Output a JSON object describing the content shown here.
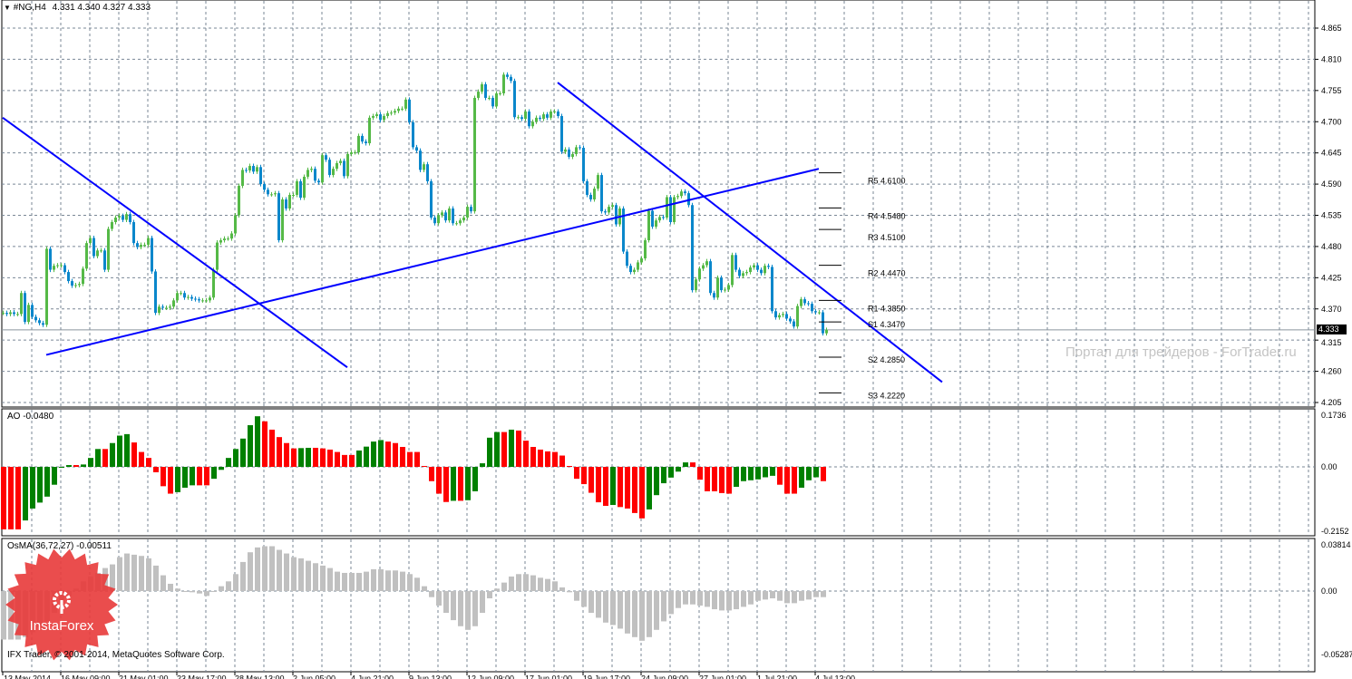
{
  "header": {
    "symbol": "#NG,H4",
    "ohlc": "4.331 4.340 4.327 4.333",
    "menu_icon": "triangle-down-icon"
  },
  "watermark": "Портал для трейдеров - ForTrader.ru",
  "copyright": "IFX Trader, © 2001-2014, MetaQuotes Software Corp.",
  "logo": {
    "text": "InstaForex",
    "color": "#e83a3a"
  },
  "colors": {
    "bull": "#55b947",
    "bear": "#0a87cb",
    "trendline": "#0000ff",
    "ao_up": "#008000",
    "ao_down": "#ff0000",
    "osma": "#c0c0c0",
    "grid": "#7a8796"
  },
  "chart_data": [
    {
      "type": "candlestick",
      "title": "#NG,H4",
      "timeframe": "H4",
      "current_price": "4.333",
      "ylim": [
        4.205,
        4.865
      ],
      "y_ticks": [
        "4.865",
        "4.810",
        "4.755",
        "4.700",
        "4.645",
        "4.590",
        "4.535",
        "4.480",
        "4.425",
        "4.370",
        "4.315",
        "4.260",
        "4.205"
      ],
      "x_ticks": [
        "13 May 2014",
        "16 May 09:00",
        "21 May 01:00",
        "23 May 17:00",
        "28 May 13:00",
        "2 Jun 05:00",
        "4 Jun 21:00",
        "9 Jun 13:00",
        "12 Jun 09:00",
        "17 Jun 01:00",
        "19 Jun 17:00",
        "24 Jun 09:00",
        "27 Jun 01:00",
        "1 Jul 21:00",
        "4 Jul 13:00"
      ],
      "grid": true,
      "close": [
        4.363,
        4.361,
        4.364,
        4.361,
        4.361,
        4.398,
        4.347,
        4.377,
        4.356,
        4.35,
        4.345,
        4.342,
        4.476,
        4.439,
        4.446,
        4.447,
        4.447,
        4.435,
        4.419,
        4.411,
        4.412,
        4.414,
        4.441,
        4.486,
        4.495,
        4.463,
        4.473,
        4.473,
        4.439,
        4.511,
        4.523,
        4.531,
        4.534,
        4.527,
        4.537,
        4.523,
        4.486,
        4.479,
        4.483,
        4.483,
        4.495,
        4.436,
        4.363,
        4.374,
        4.372,
        4.372,
        4.374,
        4.385,
        4.398,
        4.398,
        4.39,
        4.391,
        4.388,
        4.387,
        4.385,
        4.385,
        4.385,
        4.39,
        4.439,
        4.487,
        4.491,
        4.494,
        4.494,
        4.503,
        4.535,
        4.587,
        4.615,
        4.614,
        4.622,
        4.612,
        4.62,
        4.59,
        4.58,
        4.572,
        4.572,
        4.574,
        4.491,
        4.563,
        4.547,
        4.571,
        4.571,
        4.595,
        4.566,
        4.603,
        4.615,
        4.617,
        4.596,
        4.593,
        4.641,
        4.633,
        4.606,
        4.617,
        4.627,
        4.631,
        4.604,
        4.643,
        4.646,
        4.646,
        4.675,
        4.665,
        4.662,
        4.707,
        4.71,
        4.713,
        4.703,
        4.71,
        4.715,
        4.716,
        4.719,
        4.723,
        4.723,
        4.739,
        4.699,
        4.655,
        4.649,
        4.615,
        4.625,
        4.595,
        4.531,
        4.521,
        4.535,
        4.54,
        4.526,
        4.547,
        4.521,
        4.521,
        4.526,
        4.531,
        4.55,
        4.542,
        4.742,
        4.753,
        4.766,
        4.742,
        4.742,
        4.727,
        4.75,
        4.75,
        4.783,
        4.779,
        4.772,
        4.708,
        4.708,
        4.705,
        4.718,
        4.692,
        4.7,
        4.707,
        4.705,
        4.713,
        4.707,
        4.718,
        4.718,
        4.71,
        4.647,
        4.651,
        4.638,
        4.643,
        4.655,
        4.654,
        4.595,
        4.571,
        4.563,
        4.582,
        4.606,
        4.542,
        4.54,
        4.55,
        4.553,
        4.519,
        4.547,
        4.471,
        4.446,
        4.435,
        4.439,
        4.452,
        4.459,
        4.491,
        4.543,
        4.515,
        4.526,
        4.532,
        4.531,
        4.567,
        4.523,
        4.567,
        4.569,
        4.577,
        4.574,
        4.553,
        4.403,
        4.422,
        4.441,
        4.447,
        4.454,
        4.398,
        4.39,
        4.425,
        4.403,
        4.404,
        4.412,
        4.465,
        4.439,
        4.428,
        4.433,
        4.435,
        4.443,
        4.447,
        4.439,
        4.433,
        4.446,
        4.444,
        4.366,
        4.355,
        4.359,
        4.361,
        4.353,
        4.348,
        4.339,
        4.375,
        4.387,
        4.38,
        4.379,
        4.366,
        4.364,
        4.364,
        4.327,
        4.333
      ],
      "trendlines": [
        {
          "from": {
            "bar": 0,
            "price": 4.707
          },
          "to": {
            "bar": 95,
            "price": 4.267
          }
        },
        {
          "from": {
            "bar": 12,
            "price": 4.289
          },
          "to": {
            "bar": 225,
            "price": 4.617
          }
        },
        {
          "from": {
            "bar": 153,
            "price": 4.769
          },
          "to": {
            "bar": 259,
            "price": 4.241
          }
        }
      ],
      "pivots": [
        {
          "label": "R5 4.6100",
          "price": 4.61
        },
        {
          "label": "R4 4.5480",
          "price": 4.548
        },
        {
          "label": "R3 4.5100",
          "price": 4.51
        },
        {
          "label": "R2 4.4470",
          "price": 4.447
        },
        {
          "label": "R1 4.3850",
          "price": 4.385
        },
        {
          "label": "S1 4.3470",
          "price": 4.347
        },
        {
          "label": "S2 4.2850",
          "price": 4.285
        },
        {
          "label": "S3 4.2220",
          "price": 4.222
        }
      ]
    },
    {
      "type": "bar",
      "title": "AO -0.0480",
      "ylim": [
        -0.2152,
        0.1736
      ],
      "y_ticks": [
        "0.1736",
        "0.00",
        "-0.2152"
      ],
      "values": [
        -0.21,
        -0.21,
        -0.21,
        -0.18,
        -0.14,
        -0.12,
        -0.1,
        -0.06,
        0.0,
        0.006,
        0.006,
        0.008,
        0.03,
        0.06,
        0.06,
        0.08,
        0.105,
        0.11,
        0.082,
        0.05,
        0.03,
        -0.018,
        -0.065,
        -0.09,
        -0.085,
        -0.07,
        -0.062,
        -0.062,
        -0.062,
        -0.04,
        -0.01,
        0.03,
        0.06,
        0.095,
        0.14,
        0.17,
        0.153,
        0.125,
        0.1,
        0.08,
        0.062,
        0.063,
        0.064,
        0.064,
        0.062,
        0.058,
        0.05,
        0.04,
        0.04,
        0.055,
        0.068,
        0.085,
        0.09,
        0.085,
        0.08,
        0.067,
        0.05,
        0.05,
        0.003,
        -0.048,
        -0.09,
        -0.118,
        -0.114,
        -0.114,
        -0.112,
        -0.082,
        0.012,
        0.098,
        0.117,
        0.117,
        0.125,
        0.122,
        0.088,
        0.067,
        0.058,
        0.052,
        0.05,
        0.038,
        0.003,
        -0.04,
        -0.058,
        -0.087,
        -0.119,
        -0.131,
        -0.128,
        -0.135,
        -0.14,
        -0.155,
        -0.173,
        -0.143,
        -0.095,
        -0.055,
        -0.036,
        -0.016,
        0.015,
        0.015,
        -0.043,
        -0.082,
        -0.082,
        -0.088,
        -0.09,
        -0.067,
        -0.048,
        -0.045,
        -0.042,
        -0.035,
        -0.03,
        -0.06,
        -0.09,
        -0.09,
        -0.07,
        -0.045,
        -0.035,
        -0.048
      ]
    },
    {
      "type": "bar",
      "title": "OsMA(36,72,27) -0.00511",
      "ylim": [
        -0.05287,
        0.03814
      ],
      "y_ticks": [
        "0.03814",
        "0.00",
        "-0.05287"
      ],
      "values": [
        -0.04,
        -0.04,
        -0.04,
        -0.038,
        -0.034,
        -0.03,
        -0.025,
        -0.018,
        -0.01,
        -0.004,
        0.002,
        0.008,
        0.012,
        0.015,
        0.019,
        0.022,
        0.028,
        0.031,
        0.03,
        0.029,
        0.027,
        0.021,
        0.013,
        0.006,
        0.002,
        0.0,
        -0.001,
        -0.002,
        -0.004,
        0.0,
        0.004,
        0.008,
        0.014,
        0.024,
        0.032,
        0.036,
        0.037,
        0.037,
        0.034,
        0.031,
        0.028,
        0.027,
        0.025,
        0.023,
        0.021,
        0.019,
        0.016,
        0.015,
        0.015,
        0.015,
        0.016,
        0.018,
        0.018,
        0.017,
        0.017,
        0.016,
        0.014,
        0.011,
        0.004,
        -0.005,
        -0.012,
        -0.018,
        -0.024,
        -0.029,
        -0.032,
        -0.029,
        -0.018,
        -0.006,
        0.002,
        0.007,
        0.012,
        0.014,
        0.014,
        0.013,
        0.011,
        0.01,
        0.008,
        0.003,
        -0.001,
        -0.008,
        -0.013,
        -0.018,
        -0.022,
        -0.026,
        -0.028,
        -0.031,
        -0.035,
        -0.038,
        -0.041,
        -0.038,
        -0.032,
        -0.025,
        -0.019,
        -0.014,
        -0.011,
        -0.011,
        -0.012,
        -0.013,
        -0.015,
        -0.016,
        -0.016,
        -0.015,
        -0.013,
        -0.011,
        -0.008,
        -0.007,
        -0.006,
        -0.008,
        -0.01,
        -0.01,
        -0.008,
        -0.007,
        -0.005,
        -0.005
      ]
    }
  ]
}
